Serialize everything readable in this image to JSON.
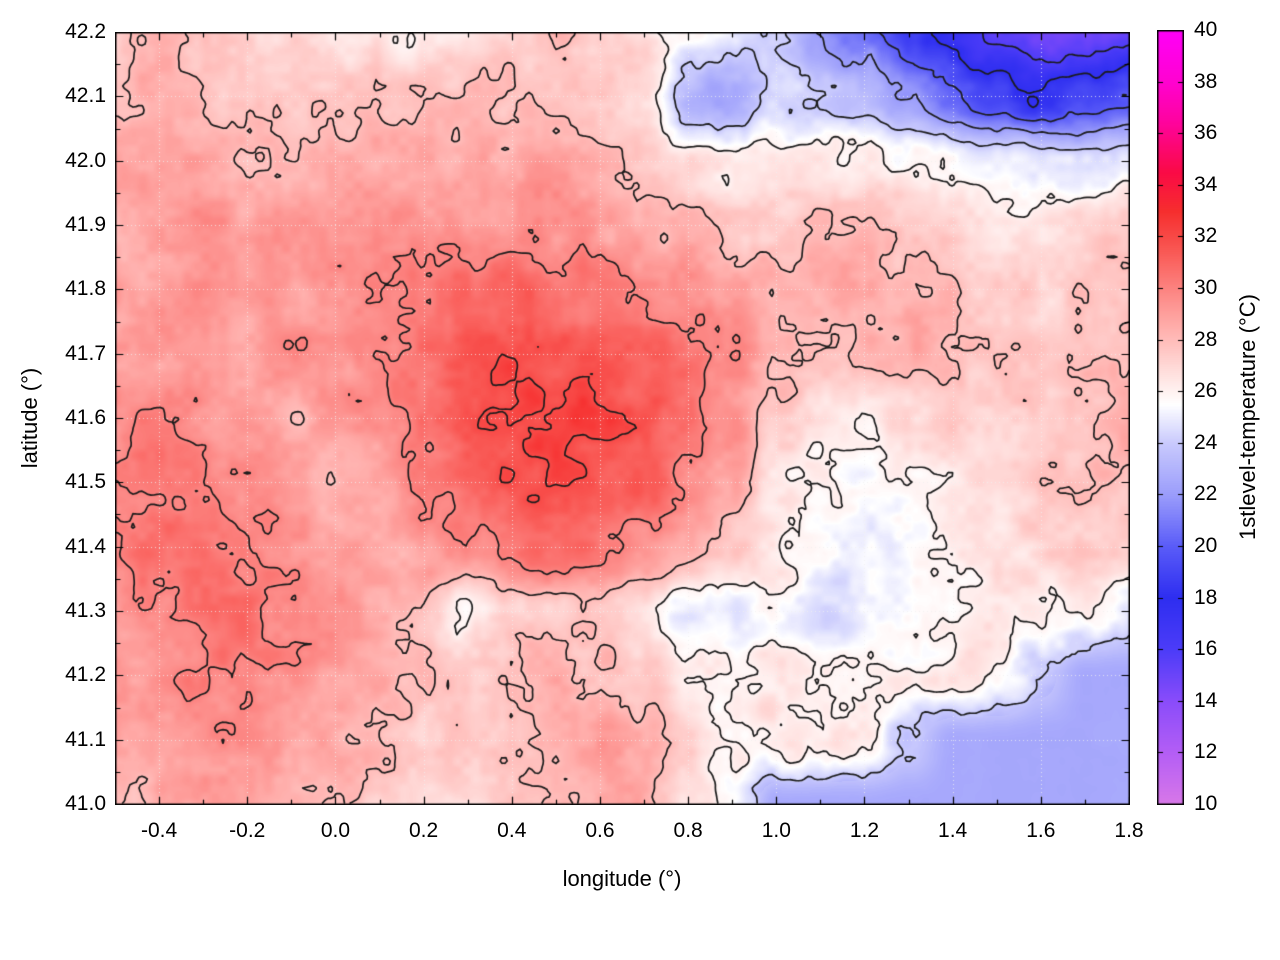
{
  "chart_data": {
    "type": "heatmap",
    "title": "",
    "xlabel": "longitude (°)",
    "ylabel": "latitude (°)",
    "colorbar_label": "1stlevel-temperature (°C)",
    "xlim": [
      -0.5,
      1.8
    ],
    "ylim": [
      41.0,
      42.2
    ],
    "zlim": [
      10,
      40
    ],
    "grid": true,
    "x_minor_step": 0.1,
    "y_minor_step": 0.05,
    "x_ticks": [
      {
        "v": -0.4,
        "label": "-0.4"
      },
      {
        "v": -0.2,
        "label": "-0.2"
      },
      {
        "v": 0.0,
        "label": "0.0"
      },
      {
        "v": 0.2,
        "label": "0.2"
      },
      {
        "v": 0.4,
        "label": "0.4"
      },
      {
        "v": 0.6,
        "label": "0.6"
      },
      {
        "v": 0.8,
        "label": "0.8"
      },
      {
        "v": 1.0,
        "label": "1.0"
      },
      {
        "v": 1.2,
        "label": "1.2"
      },
      {
        "v": 1.4,
        "label": "1.4"
      },
      {
        "v": 1.6,
        "label": "1.6"
      },
      {
        "v": 1.8,
        "label": "1.8"
      }
    ],
    "y_ticks": [
      {
        "v": 41.0,
        "label": "41.0"
      },
      {
        "v": 41.1,
        "label": "41.1"
      },
      {
        "v": 41.2,
        "label": "41.2"
      },
      {
        "v": 41.3,
        "label": "41.3"
      },
      {
        "v": 41.4,
        "label": "41.4"
      },
      {
        "v": 41.5,
        "label": "41.5"
      },
      {
        "v": 41.6,
        "label": "41.6"
      },
      {
        "v": 41.7,
        "label": "41.7"
      },
      {
        "v": 41.8,
        "label": "41.8"
      },
      {
        "v": 41.9,
        "label": "41.9"
      },
      {
        "v": 42.0,
        "label": "42.0"
      },
      {
        "v": 42.1,
        "label": "42.1"
      },
      {
        "v": 42.2,
        "label": "42.2"
      }
    ],
    "cb_ticks": [
      {
        "v": 10,
        "label": "10"
      },
      {
        "v": 12,
        "label": "12"
      },
      {
        "v": 14,
        "label": "14"
      },
      {
        "v": 16,
        "label": "16"
      },
      {
        "v": 18,
        "label": "18"
      },
      {
        "v": 20,
        "label": "20"
      },
      {
        "v": 22,
        "label": "22"
      },
      {
        "v": 24,
        "label": "24"
      },
      {
        "v": 26,
        "label": "26"
      },
      {
        "v": 28,
        "label": "28"
      },
      {
        "v": 30,
        "label": "30"
      },
      {
        "v": 32,
        "label": "32"
      },
      {
        "v": 34,
        "label": "34"
      },
      {
        "v": 36,
        "label": "36"
      },
      {
        "v": 38,
        "label": "38"
      },
      {
        "v": 40,
        "label": "40"
      }
    ],
    "contour_levels": [
      14,
      16,
      18,
      20,
      22,
      24,
      26,
      28,
      30,
      32
    ],
    "contour_color": "#1c1c1c",
    "grid_color": "rgba(240,240,240,0.8)",
    "background": "#ffffff",
    "palette": [
      {
        "t": 10,
        "c": "#d878e8"
      },
      {
        "t": 12,
        "c": "#b45ef5"
      },
      {
        "t": 14,
        "c": "#8a4cfa"
      },
      {
        "t": 16,
        "c": "#4c3cf8"
      },
      {
        "t": 18,
        "c": "#2e2ef0"
      },
      {
        "t": 20,
        "c": "#5a5cf8"
      },
      {
        "t": 22,
        "c": "#9b9dfb"
      },
      {
        "t": 24,
        "c": "#c9cafd"
      },
      {
        "t": 25.5,
        "c": "#ffffff"
      },
      {
        "t": 27,
        "c": "#ffd8d6"
      },
      {
        "t": 28.5,
        "c": "#ffaeab"
      },
      {
        "t": 30,
        "c": "#fc8380"
      },
      {
        "t": 31.5,
        "c": "#f95753"
      },
      {
        "t": 33,
        "c": "#f62e2e"
      },
      {
        "t": 34.5,
        "c": "#fa0a46"
      },
      {
        "t": 36.5,
        "c": "#fe03a0"
      },
      {
        "t": 38,
        "c": "#ff02d0"
      },
      {
        "t": 40,
        "c": "#ff00f8"
      }
    ],
    "lon_grid": [
      -0.5,
      -0.4,
      -0.3,
      -0.2,
      -0.1,
      0.0,
      0.1,
      0.2,
      0.3,
      0.4,
      0.5,
      0.6,
      0.7,
      0.8,
      0.9,
      1.0,
      1.1,
      1.2,
      1.3,
      1.4,
      1.5,
      1.6,
      1.7,
      1.8
    ],
    "lat_grid": [
      42.2,
      42.1,
      42.0,
      41.9,
      41.8,
      41.7,
      41.6,
      41.5,
      41.4,
      41.3,
      41.2,
      41.1,
      41.0
    ],
    "temperature_grid": [
      [
        28,
        28,
        27.5,
        27,
        27,
        26.5,
        26.5,
        26,
        26.5,
        27.5,
        28,
        27.5,
        27,
        25.5,
        25,
        24,
        22,
        21,
        19,
        17,
        15.5,
        14.5,
        15,
        15.5
      ],
      [
        28,
        28.5,
        28,
        27.5,
        27.5,
        27.5,
        27.5,
        28,
        28,
        28,
        28,
        27.5,
        26.5,
        23,
        22.5,
        24.5,
        24,
        23,
        22,
        20.5,
        19,
        18,
        19,
        20
      ],
      [
        28.5,
        29,
        28.5,
        28,
        28,
        28.5,
        28.5,
        28.5,
        28.5,
        28.5,
        29,
        28.5,
        27.5,
        26.5,
        26,
        26,
        26.5,
        26,
        26,
        25.5,
        25,
        24.5,
        24.5,
        25
      ],
      [
        28.5,
        29,
        29.5,
        29,
        29,
        29,
        29.5,
        29.5,
        29,
        29.5,
        29.5,
        29,
        28.5,
        28,
        27.5,
        27.5,
        28,
        28,
        27.5,
        27,
        26.5,
        26.5,
        27,
        27.5
      ],
      [
        29,
        29,
        29.5,
        29,
        29,
        29.5,
        30,
        30.5,
        31,
        31,
        30.5,
        30.5,
        30,
        29.5,
        29,
        28.5,
        28.5,
        28.5,
        28.5,
        28,
        27.5,
        27,
        27.5,
        28
      ],
      [
        29,
        29,
        29,
        29,
        29.5,
        29.5,
        30,
        30.5,
        31.5,
        32,
        31.5,
        31.5,
        31,
        30.5,
        29.5,
        28.5,
        28,
        28,
        28.5,
        28,
        27.5,
        27.5,
        28,
        28
      ],
      [
        29.5,
        30,
        29.5,
        29,
        28.5,
        29,
        29.5,
        30.5,
        31.5,
        32,
        32.5,
        32,
        31.5,
        30.5,
        29.5,
        27.5,
        26.5,
        26.5,
        27,
        27.5,
        27,
        27.5,
        28,
        28.5
      ],
      [
        30,
        30.5,
        30,
        29.5,
        29,
        28.5,
        29,
        30,
        31,
        31.5,
        32,
        31.5,
        31,
        30,
        28.5,
        26.5,
        26,
        25.5,
        26,
        26.5,
        27,
        27.5,
        28,
        28
      ],
      [
        30,
        30.5,
        30.5,
        30,
        29.5,
        29,
        28.5,
        29,
        30,
        30.5,
        31,
        30.5,
        29.5,
        28.5,
        27.5,
        26.5,
        25.5,
        25,
        25.5,
        26,
        26.5,
        27,
        27.5,
        27.5
      ],
      [
        29.5,
        30,
        30.5,
        30.5,
        30,
        29.5,
        28.5,
        28,
        26,
        27,
        27.5,
        27.5,
        26.5,
        24.5,
        25,
        25.5,
        24.5,
        25,
        25.5,
        26,
        26.5,
        26.5,
        26,
        25
      ],
      [
        29,
        29.5,
        30,
        30,
        29.5,
        29,
        28.5,
        28,
        27.5,
        28,
        28.5,
        28,
        27.5,
        26.5,
        26,
        26.5,
        26.5,
        26,
        26,
        26.5,
        26,
        24,
        22.5,
        22.5
      ],
      [
        28.5,
        29,
        29.5,
        29.5,
        29,
        28.5,
        28,
        27.5,
        27.5,
        28,
        28.5,
        29,
        28.5,
        27,
        26,
        26.5,
        26.5,
        26,
        24,
        22.5,
        22.5,
        22.5,
        22.5,
        22.5
      ],
      [
        28,
        28.5,
        29,
        29,
        28.5,
        28,
        27.5,
        27,
        27,
        27.5,
        28,
        28.5,
        28.5,
        27,
        25.5,
        22.5,
        22.5,
        22.5,
        22.5,
        22.5,
        22.5,
        22.5,
        22.5,
        22.5
      ]
    ]
  }
}
